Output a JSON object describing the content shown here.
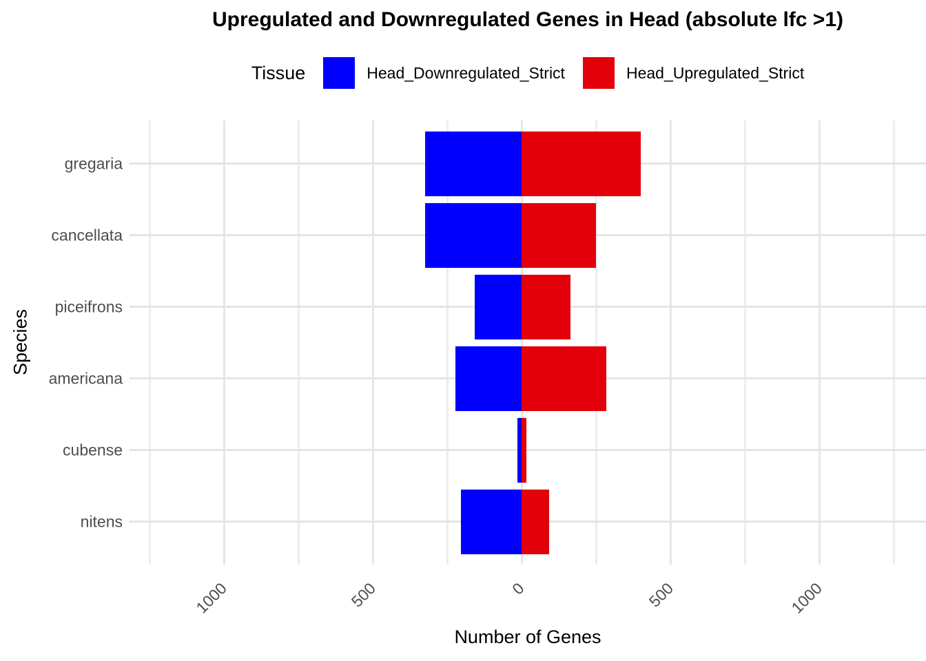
{
  "title": "Upregulated and Downregulated Genes in Head (absolute lfc >1)",
  "legend": {
    "title": "Tissue",
    "items": [
      {
        "label": "Head_Downregulated_Strict",
        "color": "#0000FF"
      },
      {
        "label": "Head_Upregulated_Strict",
        "color": "#E2000B"
      }
    ]
  },
  "chart_data": {
    "type": "bar",
    "subtype": "horizontal-diverging",
    "title": "Upregulated and Downregulated Genes in Head (absolute lfc >1)",
    "xlabel": "Number of Genes",
    "ylabel": "Species",
    "categories": [
      "gregaria",
      "cancellata",
      "piceifrons",
      "americana",
      "cubense",
      "nitens"
    ],
    "series": [
      {
        "name": "Head_Downregulated_Strict",
        "color": "#0000FF",
        "direction": "negative",
        "values": [
          325,
          325,
          157,
          222,
          14,
          204
        ]
      },
      {
        "name": "Head_Upregulated_Strict",
        "color": "#E2000B",
        "direction": "positive",
        "values": [
          400,
          250,
          164,
          285,
          16,
          93
        ]
      }
    ],
    "x_ticks": [
      -1000,
      -500,
      0,
      500,
      1000
    ],
    "x_tick_labels": [
      "1000",
      "500",
      "0",
      "500",
      "1000"
    ],
    "x_minor_ticks": [
      -1250,
      -750,
      -250,
      250,
      750,
      1250
    ],
    "xlim": [
      -1320,
      1360
    ],
    "grid": true,
    "legend_position": "top",
    "bar_width_fraction": 0.9
  },
  "colors": {
    "background": "#FFFFFF",
    "grid_major": "#E6E6E6",
    "grid_minor": "#EDEDED",
    "axis_text": "#4D4D4D",
    "title_text": "#000000"
  }
}
